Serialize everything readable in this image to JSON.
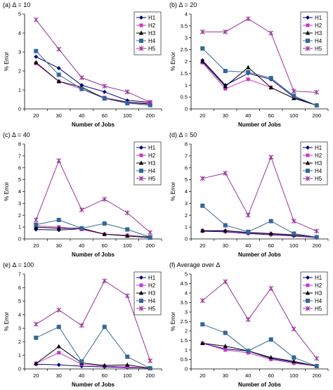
{
  "chart_data": [
    {
      "type": "line",
      "title": "(a)  Δ = 10",
      "xlabel": "Number of Jobs",
      "ylabel": "% Error",
      "categories": [
        "20",
        "30",
        "40",
        "60",
        "100",
        "200"
      ],
      "ylim": [
        0,
        5
      ],
      "yticks": [
        "0",
        "1",
        "2",
        "3",
        "4",
        "5"
      ],
      "grid": false,
      "legend": "top-right",
      "series": [
        {
          "name": "H1",
          "marker": "diamond",
          "color": "#000080",
          "values": [
            2.75,
            2.15,
            1.25,
            0.9,
            0.45,
            0.35
          ]
        },
        {
          "name": "H2",
          "marker": "square",
          "color": "#cc33cc",
          "values": [
            2.4,
            1.45,
            1.05,
            0.6,
            0.35,
            0.3
          ]
        },
        {
          "name": "H3",
          "marker": "triangle",
          "color": "#000000",
          "values": [
            2.45,
            1.45,
            1.15,
            0.55,
            0.35,
            0.25
          ]
        },
        {
          "name": "H4",
          "marker": "filled-square",
          "color": "#336699",
          "values": [
            3.05,
            1.8,
            1.05,
            0.55,
            0.3,
            0.2
          ]
        },
        {
          "name": "H5",
          "marker": "star",
          "color": "#993399",
          "values": [
            4.7,
            3.15,
            1.65,
            1.2,
            0.9,
            0.35
          ]
        }
      ]
    },
    {
      "type": "line",
      "title": "(b)  Δ = 20",
      "xlabel": "Number of Jobs",
      "ylabel": "% Error",
      "categories": [
        "20",
        "30",
        "40",
        "60",
        "100",
        "200"
      ],
      "ylim": [
        0,
        4
      ],
      "yticks": [
        "0",
        "0.5",
        "1",
        "1.5",
        "2",
        "2.5",
        "3",
        "3.5",
        "4"
      ],
      "grid": false,
      "legend": "top-right",
      "series": [
        {
          "name": "H1",
          "marker": "diamond",
          "color": "#000080",
          "values": [
            2.05,
            1.0,
            1.5,
            1.25,
            0.5,
            0.15
          ]
        },
        {
          "name": "H2",
          "marker": "square",
          "color": "#cc33cc",
          "values": [
            1.95,
            0.85,
            1.25,
            0.9,
            0.45,
            0.15
          ]
        },
        {
          "name": "H3",
          "marker": "triangle",
          "color": "#000000",
          "values": [
            2.0,
            0.95,
            1.75,
            0.9,
            0.45,
            0.15
          ]
        },
        {
          "name": "H4",
          "marker": "filled-square",
          "color": "#336699",
          "values": [
            2.55,
            1.6,
            1.55,
            1.3,
            0.55,
            0.15
          ]
        },
        {
          "name": "H5",
          "marker": "star",
          "color": "#993399",
          "values": [
            3.25,
            3.25,
            3.8,
            3.2,
            0.75,
            0.7
          ]
        }
      ]
    },
    {
      "type": "line",
      "title": "(c)  Δ = 40",
      "xlabel": "Number of Jobs",
      "ylabel": "% Error",
      "categories": [
        "20",
        "30",
        "40",
        "60",
        "100",
        "200"
      ],
      "ylim": [
        0,
        8
      ],
      "yticks": [
        "0",
        "1",
        "2",
        "3",
        "4",
        "5",
        "6",
        "7",
        "8"
      ],
      "grid": false,
      "legend": "top-right",
      "series": [
        {
          "name": "H1",
          "marker": "diamond",
          "color": "#000080",
          "values": [
            0.8,
            0.75,
            0.85,
            0.4,
            0.3,
            0.15
          ]
        },
        {
          "name": "H2",
          "marker": "square",
          "color": "#cc33cc",
          "values": [
            1.1,
            1.0,
            0.8,
            0.4,
            0.3,
            0.1
          ]
        },
        {
          "name": "H3",
          "marker": "triangle",
          "color": "#000000",
          "values": [
            1.0,
            0.9,
            0.9,
            0.4,
            0.25,
            0.1
          ]
        },
        {
          "name": "H4",
          "marker": "filled-square",
          "color": "#336699",
          "values": [
            1.2,
            1.6,
            0.9,
            1.3,
            0.8,
            0.15
          ]
        },
        {
          "name": "H5",
          "marker": "star",
          "color": "#993399",
          "values": [
            1.6,
            6.6,
            2.45,
            3.35,
            2.2,
            0.55
          ]
        }
      ]
    },
    {
      "type": "line",
      "title": "(d)  Δ = 50",
      "xlabel": "Number of Jobs",
      "ylabel": "% Error",
      "categories": [
        "20",
        "30",
        "40",
        "60",
        "100",
        "200"
      ],
      "ylim": [
        0,
        8
      ],
      "yticks": [
        "0",
        "1",
        "2",
        "3",
        "4",
        "5",
        "6",
        "7",
        "8"
      ],
      "grid": false,
      "legend": "top-right",
      "series": [
        {
          "name": "H1",
          "marker": "diamond",
          "color": "#000080",
          "values": [
            0.65,
            0.6,
            0.45,
            0.35,
            0.25,
            0.1
          ]
        },
        {
          "name": "H2",
          "marker": "square",
          "color": "#cc33cc",
          "values": [
            0.7,
            0.65,
            0.5,
            0.4,
            0.3,
            0.1
          ]
        },
        {
          "name": "H3",
          "marker": "triangle",
          "color": "#000000",
          "values": [
            0.7,
            0.7,
            0.55,
            0.45,
            0.35,
            0.15
          ]
        },
        {
          "name": "H4",
          "marker": "filled-square",
          "color": "#336699",
          "values": [
            2.8,
            1.15,
            0.6,
            1.5,
            0.45,
            0.15
          ]
        },
        {
          "name": "H5",
          "marker": "star",
          "color": "#993399",
          "values": [
            5.1,
            5.55,
            2.0,
            6.9,
            1.5,
            0.65
          ]
        }
      ]
    },
    {
      "type": "line",
      "title": "(e)  Δ = 100",
      "xlabel": "Number of Jobs",
      "ylabel": "% Error",
      "categories": [
        "20",
        "30",
        "40",
        "60",
        "100",
        "200"
      ],
      "ylim": [
        0,
        7
      ],
      "yticks": [
        "0",
        "1",
        "2",
        "3",
        "4",
        "5",
        "6",
        "7"
      ],
      "grid": false,
      "legend": "top-right",
      "series": [
        {
          "name": "H1",
          "marker": "diamond",
          "color": "#000080",
          "values": [
            0.35,
            0.3,
            0.2,
            0.15,
            0.1,
            0.05
          ]
        },
        {
          "name": "H2",
          "marker": "square",
          "color": "#cc33cc",
          "values": [
            0.4,
            1.2,
            0.35,
            0.2,
            0.15,
            0.05
          ]
        },
        {
          "name": "H3",
          "marker": "triangle",
          "color": "#000000",
          "values": [
            0.4,
            1.65,
            0.45,
            0.25,
            0.3,
            0.05
          ]
        },
        {
          "name": "H4",
          "marker": "filled-square",
          "color": "#336699",
          "values": [
            2.3,
            3.1,
            0.55,
            3.1,
            0.9,
            0.05
          ]
        },
        {
          "name": "H5",
          "marker": "star",
          "color": "#993399",
          "values": [
            3.3,
            4.35,
            3.2,
            6.5,
            5.4,
            0.6
          ]
        }
      ]
    },
    {
      "type": "line",
      "title": "(f)  Average over Δ",
      "xlabel": "Number of Jobs",
      "ylabel": "% Error",
      "categories": [
        "20",
        "30",
        "40",
        "60",
        "100",
        "200"
      ],
      "ylim": [
        0,
        5
      ],
      "yticks": [
        "0",
        "0.5",
        "1",
        "1.5",
        "2",
        "2.5",
        "3",
        "3.5",
        "4",
        "4.5",
        "5"
      ],
      "grid": false,
      "legend": "top-right",
      "series": [
        {
          "name": "H1",
          "marker": "diamond",
          "color": "#000080",
          "values": [
            1.35,
            1.05,
            0.95,
            0.55,
            0.35,
            0.15
          ]
        },
        {
          "name": "H2",
          "marker": "square",
          "color": "#cc33cc",
          "values": [
            1.35,
            1.0,
            0.85,
            0.5,
            0.3,
            0.15
          ]
        },
        {
          "name": "H3",
          "marker": "triangle",
          "color": "#000000",
          "values": [
            1.35,
            1.2,
            0.95,
            0.6,
            0.4,
            0.15
          ]
        },
        {
          "name": "H4",
          "marker": "filled-square",
          "color": "#336699",
          "values": [
            2.35,
            1.9,
            0.95,
            1.55,
            0.6,
            0.15
          ]
        },
        {
          "name": "H5",
          "marker": "star",
          "color": "#993399",
          "values": [
            3.6,
            4.6,
            2.6,
            4.25,
            2.1,
            0.55
          ]
        }
      ]
    }
  ]
}
